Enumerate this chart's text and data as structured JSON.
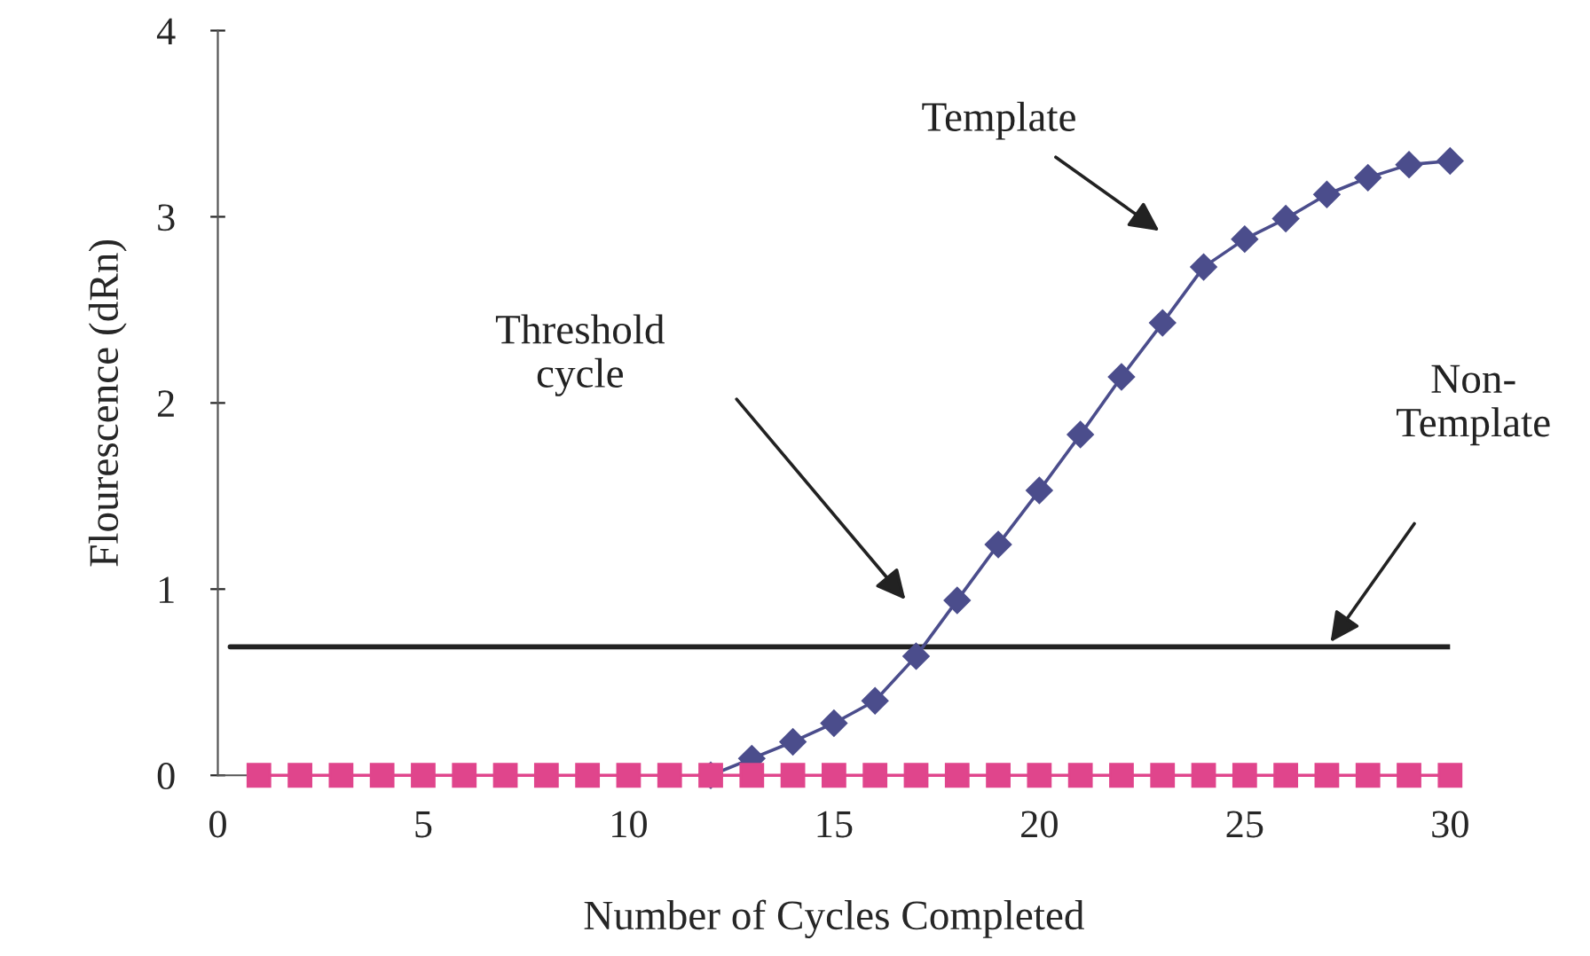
{
  "chart_data": {
    "type": "line",
    "xlabel": "Number of Cycles Completed",
    "ylabel": "Flourescence (dRn)",
    "x": [
      1,
      2,
      3,
      4,
      5,
      6,
      7,
      8,
      9,
      10,
      11,
      12,
      13,
      14,
      15,
      16,
      17,
      18,
      19,
      20,
      21,
      22,
      23,
      24,
      25,
      26,
      27,
      28,
      29,
      30
    ],
    "series": [
      {
        "color": "#4b4d8c",
        "marker": "diamond",
        "values": [
          null,
          null,
          null,
          null,
          null,
          null,
          null,
          null,
          null,
          null,
          null,
          0,
          0.09,
          0.18,
          0.28,
          0.4,
          0.64,
          0.94,
          1.24,
          1.53,
          1.83,
          2.14,
          2.43,
          2.73,
          2.88,
          2.99,
          3.12,
          3.21,
          3.28,
          3.3
        ]
      },
      {
        "color": "#e0458c",
        "marker": "square",
        "values": [
          0,
          0,
          0,
          0,
          0,
          0,
          0,
          0,
          0,
          0,
          0,
          0,
          0,
          0,
          0,
          0,
          0,
          0,
          0,
          0,
          0,
          0,
          0,
          0,
          0,
          0,
          0,
          0,
          0,
          0
        ]
      }
    ],
    "ref_lines": [
      {
        "axis": "y",
        "value": 0.69,
        "color": "#222222"
      }
    ],
    "annotations": [
      "Template",
      "Threshold\ncycle",
      "Non-\nTemplate"
    ],
    "xlim": [
      0,
      30
    ],
    "ylim": [
      0,
      4
    ],
    "xticks": [
      0,
      5,
      10,
      15,
      20,
      25,
      30
    ],
    "yticks": [
      0,
      1,
      2,
      3,
      4
    ],
    "grid": false,
    "legend": false
  }
}
